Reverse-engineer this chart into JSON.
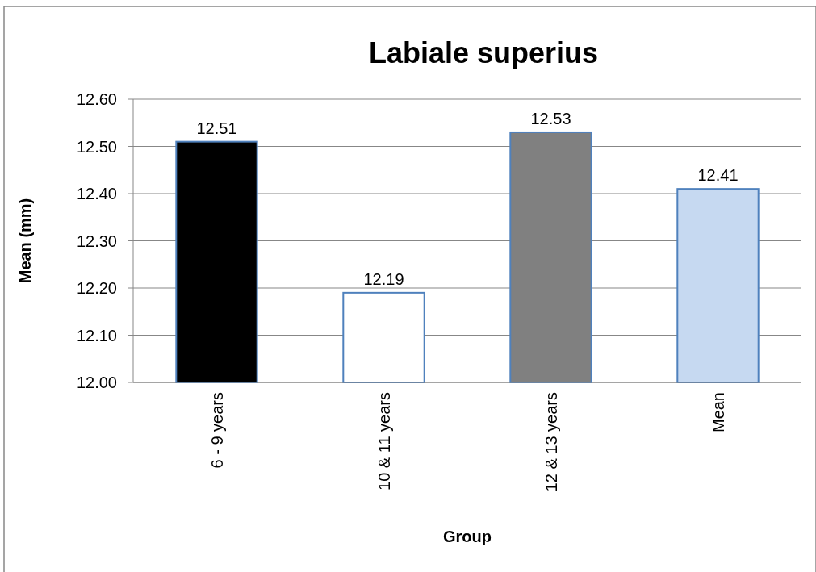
{
  "chart_data": {
    "type": "bar",
    "title": "Labiale superius",
    "xlabel": "Group",
    "ylabel": "Mean (mm)",
    "categories": [
      "6 - 9 years",
      "10 & 11 years",
      "12 & 13 years",
      "Mean"
    ],
    "values": [
      12.51,
      12.19,
      12.53,
      12.41
    ],
    "colors": [
      "#000000",
      "#ffffff",
      "#808080",
      "#c6d9f1"
    ],
    "ylim": [
      12.0,
      12.6
    ],
    "yticks": [
      {
        "value": 12.0,
        "label": "12.00"
      },
      {
        "value": 12.1,
        "label": "12.10"
      },
      {
        "value": 12.2,
        "label": "12.20"
      },
      {
        "value": 12.3,
        "label": "12.30"
      },
      {
        "value": 12.4,
        "label": "12.40"
      },
      {
        "value": 12.5,
        "label": "12.50"
      },
      {
        "value": 12.6,
        "label": "12.60"
      }
    ],
    "grid": "y",
    "data_labels": true
  }
}
